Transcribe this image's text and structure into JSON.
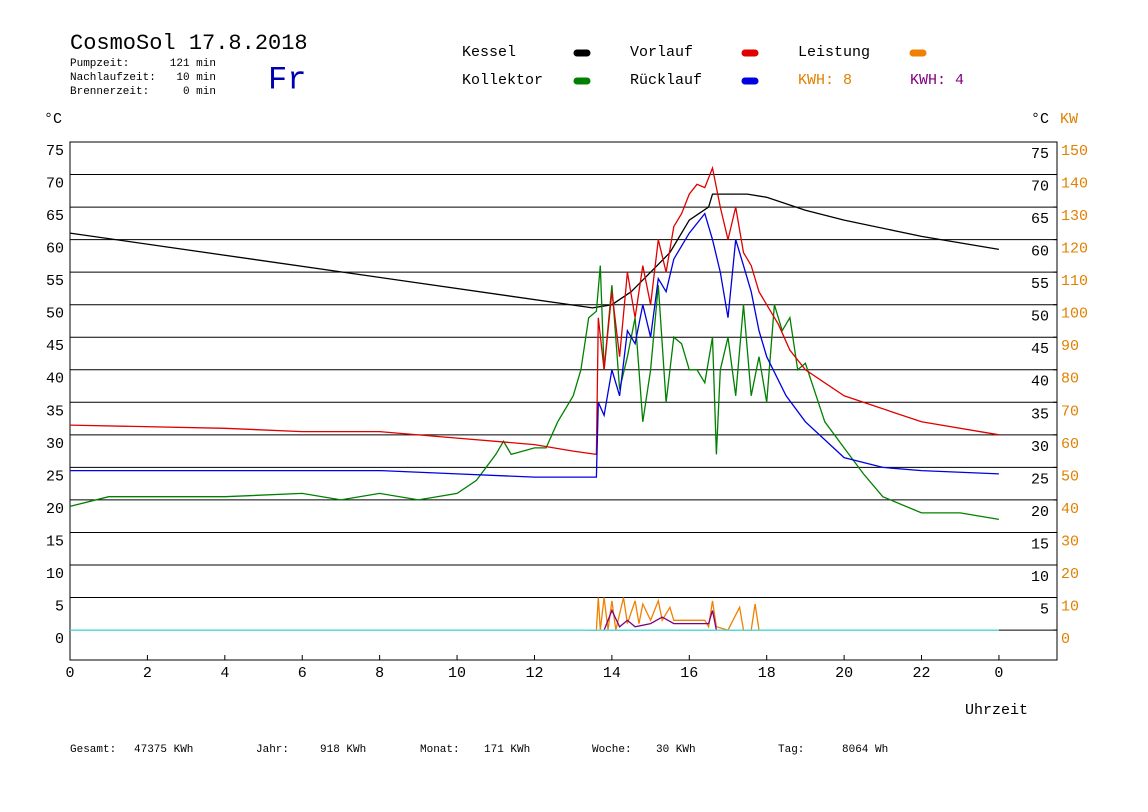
{
  "chart_data": {
    "type": "line",
    "title": "CosmoSol 17.8.2018",
    "day": "Fr",
    "info": [
      {
        "label": "Pumpzeit:",
        "value": "121 min"
      },
      {
        "label": "Nachlaufzeit:",
        "value": "10 min"
      },
      {
        "label": "Brennerzeit:",
        "value": "0 min"
      }
    ],
    "y_unit": "°C",
    "y2_unit_left": "°C",
    "y2_unit": "KW",
    "x_label": "Uhrzeit",
    "xlim": [
      0,
      25.5
    ],
    "xticks": [
      0,
      2,
      4,
      6,
      8,
      10,
      12,
      14,
      16,
      18,
      20,
      22,
      {
        "value": 24,
        "label": "0"
      }
    ],
    "ylim": [
      -4.6,
      75
    ],
    "yticks": [
      0,
      5,
      10,
      15,
      20,
      25,
      30,
      35,
      40,
      45,
      50,
      55,
      60,
      65,
      70,
      75
    ],
    "y2lim": [
      -9.2,
      150
    ],
    "y2ticks": [
      0,
      10,
      20,
      30,
      40,
      50,
      60,
      70,
      80,
      90,
      100,
      110,
      120,
      130,
      140,
      150
    ],
    "grid": true,
    "series": [
      {
        "name": "Kessel",
        "color": "#000000",
        "x": [
          0,
          13.5,
          14,
          14.5,
          15,
          15.5,
          16,
          16.5,
          16.6,
          17.5,
          18,
          19,
          20,
          22,
          24
        ],
        "values": [
          61,
          49.5,
          50,
          52,
          55,
          58,
          63,
          65,
          67,
          67,
          66.5,
          64.5,
          63,
          60.5,
          58.5
        ]
      },
      {
        "name": "Kollektor",
        "color": "#008000",
        "x": [
          0,
          1,
          4,
          6,
          7,
          8,
          9,
          10,
          10.5,
          11,
          11.2,
          11.4,
          12,
          12.3,
          12.6,
          13,
          13.2,
          13.4,
          13.6,
          13.7,
          13.8,
          14,
          14.2,
          14.4,
          14.6,
          14.8,
          15,
          15.2,
          15.4,
          15.6,
          15.8,
          16,
          16.2,
          16.4,
          16.6,
          16.7,
          16.8,
          17,
          17.2,
          17.4,
          17.6,
          17.8,
          18,
          18.2,
          18.4,
          18.6,
          18.8,
          19,
          19.5,
          20,
          20.5,
          21,
          22,
          23,
          24
        ],
        "values": [
          19,
          20.5,
          20.5,
          21,
          20,
          21,
          20,
          21,
          23,
          27,
          29,
          27,
          28,
          28,
          32,
          36,
          40,
          48,
          49,
          56,
          40,
          53,
          37,
          42,
          48,
          32,
          40,
          53,
          35,
          45,
          44,
          40,
          40,
          38,
          45,
          27,
          40,
          45,
          36,
          50,
          36,
          42,
          35,
          50,
          46,
          48,
          40,
          41,
          32,
          28,
          24,
          20.5,
          18,
          18,
          17
        ]
      },
      {
        "name": "Vorlauf",
        "color": "#e00000",
        "x": [
          0,
          4,
          6,
          8,
          10,
          12,
          13,
          13.6,
          13.65,
          13.8,
          14,
          14.2,
          14.4,
          14.6,
          14.8,
          15,
          15.2,
          15.4,
          15.6,
          15.8,
          16,
          16.2,
          16.4,
          16.6,
          16.8,
          17,
          17.2,
          17.4,
          17.6,
          17.8,
          18,
          18.3,
          18.6,
          19,
          20,
          22,
          24
        ],
        "values": [
          31.5,
          31,
          30.5,
          30.5,
          29.5,
          28.5,
          27.5,
          27,
          48,
          40,
          52,
          42,
          55,
          48,
          56,
          50,
          60,
          55,
          62,
          64,
          67,
          68.5,
          68,
          71,
          65,
          60,
          65,
          58,
          56,
          52,
          50,
          47,
          43,
          40,
          36,
          32,
          30
        ]
      },
      {
        "name": "Rücklauf",
        "color": "#0000e0",
        "x": [
          0,
          6,
          8,
          10,
          12,
          13.6,
          13.65,
          13.8,
          14,
          14.2,
          14.4,
          14.6,
          14.8,
          15,
          15.2,
          15.4,
          15.6,
          16,
          16.4,
          16.6,
          16.8,
          17,
          17.2,
          17.4,
          17.6,
          17.8,
          18,
          18.5,
          19,
          20,
          21,
          22,
          24
        ],
        "values": [
          24.5,
          24.5,
          24.5,
          24,
          23.5,
          23.5,
          35,
          33,
          40,
          36,
          46,
          44,
          50,
          45,
          54,
          52,
          57,
          61,
          64,
          60,
          55,
          48,
          60,
          56,
          52,
          46,
          42,
          36,
          32,
          26.5,
          25,
          24.5,
          24
        ]
      },
      {
        "name": "Leistung",
        "color": "#f08000",
        "axis": "y2",
        "x": [
          13.4,
          13.6,
          13.65,
          13.7,
          13.8,
          13.9,
          14,
          14.1,
          14.3,
          14.4,
          14.6,
          14.7,
          14.8,
          15,
          15.2,
          15.3,
          15.5,
          15.6,
          16,
          16.4,
          16.5,
          16.6,
          16.7,
          17,
          17.3,
          17.4,
          17.6,
          17.7,
          17.8
        ],
        "values": [
          0,
          0,
          10,
          0,
          10,
          0,
          9,
          0,
          10,
          2,
          9,
          2,
          8,
          3,
          9,
          3,
          7,
          3,
          3,
          3,
          1,
          9,
          1,
          0,
          7,
          0,
          0,
          8,
          0
        ]
      },
      {
        "color": "#800080",
        "axis": "y2",
        "x": [
          13.8,
          14,
          14.2,
          14.4,
          14.6,
          15,
          15.3,
          15.6,
          16,
          16.5,
          16.6,
          16.7
        ],
        "values": [
          0,
          6,
          1,
          3,
          1,
          2,
          4,
          2,
          2,
          2,
          6,
          0
        ]
      },
      {
        "color": "#40e0e0",
        "axis": "y2",
        "x": [
          0,
          24
        ],
        "values": [
          0,
          0
        ]
      }
    ],
    "kwh": [
      {
        "label": "KWH: 8",
        "color": "#e08000"
      },
      {
        "label": "KWH: 4",
        "color": "#800080"
      }
    ],
    "totals": [
      {
        "label": "Gesamt:",
        "value": "47375 KWh"
      },
      {
        "label": "Jahr:",
        "value": "918 KWh"
      },
      {
        "label": "Monat:",
        "value": "171 KWh"
      },
      {
        "label": "Woche:",
        "value": "30 KWh"
      },
      {
        "label": "Tag:",
        "value": "8064 Wh"
      }
    ]
  }
}
